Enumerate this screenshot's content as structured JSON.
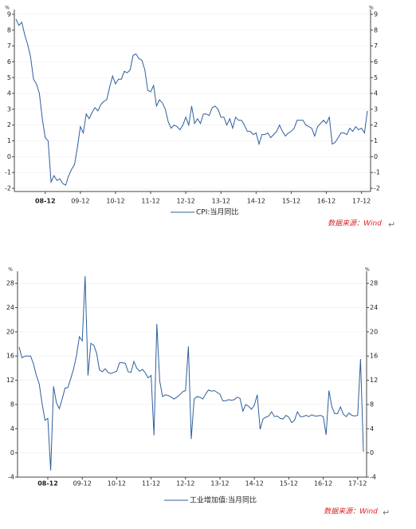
{
  "chart_data": [
    {
      "type": "line",
      "y_unit": "%",
      "legend": "CPI:当月同比",
      "source": "数据来源：Wind",
      "grid": true,
      "color": "#2d5f9e",
      "categories": [
        null,
        null,
        null,
        null,
        null,
        null,
        null,
        null,
        null,
        null,
        "08-12",
        null,
        null,
        null,
        null,
        null,
        null,
        null,
        null,
        null,
        null,
        null,
        "09-12",
        null,
        null,
        null,
        null,
        null,
        null,
        null,
        null,
        null,
        null,
        null,
        "10-12",
        null,
        null,
        null,
        null,
        null,
        null,
        null,
        null,
        null,
        null,
        null,
        "11-12",
        null,
        null,
        null,
        null,
        null,
        null,
        null,
        null,
        null,
        null,
        null,
        "12-12",
        null,
        null,
        null,
        null,
        null,
        null,
        null,
        null,
        null,
        null,
        null,
        "13-12",
        null,
        null,
        null,
        null,
        null,
        null,
        null,
        null,
        null,
        null,
        null,
        "14-12",
        null,
        null,
        null,
        null,
        null,
        null,
        null,
        null,
        null,
        null,
        null,
        "15-12",
        null,
        null,
        null,
        null,
        null,
        null,
        null,
        null,
        null,
        null,
        null,
        "16-12",
        null,
        null,
        null,
        null,
        null,
        null,
        null,
        null,
        null,
        null,
        null,
        "17-12",
        null,
        null
      ],
      "values": [
        8.7,
        8.3,
        8.5,
        7.7,
        7.1,
        6.3,
        4.9,
        4.6,
        4.0,
        2.4,
        1.2,
        1.0,
        -1.6,
        -1.2,
        -1.5,
        -1.4,
        -1.7,
        -1.8,
        -1.2,
        -0.8,
        -0.5,
        0.6,
        1.9,
        1.5,
        2.7,
        2.4,
        2.8,
        3.1,
        2.9,
        3.3,
        3.5,
        3.6,
        4.4,
        5.1,
        4.6,
        4.9,
        4.9,
        5.4,
        5.3,
        5.5,
        6.4,
        6.5,
        6.2,
        6.1,
        5.5,
        4.2,
        4.1,
        4.5,
        3.2,
        3.6,
        3.4,
        3.0,
        2.2,
        1.8,
        2.0,
        1.9,
        1.7,
        2.0,
        2.5,
        2.0,
        3.2,
        2.1,
        2.4,
        2.1,
        2.7,
        2.7,
        2.6,
        3.1,
        3.2,
        3.0,
        2.5,
        2.5,
        2.0,
        2.4,
        1.8,
        2.5,
        2.3,
        2.3,
        2.0,
        1.6,
        1.6,
        1.4,
        1.5,
        0.8,
        1.4,
        1.4,
        1.5,
        1.2,
        1.4,
        1.6,
        2.0,
        1.6,
        1.3,
        1.5,
        1.6,
        1.8,
        2.3,
        2.3,
        2.3,
        2.0,
        1.9,
        1.8,
        1.3,
        1.9,
        2.1,
        2.3,
        2.1,
        2.5,
        0.8,
        0.9,
        1.2,
        1.5,
        1.5,
        1.4,
        1.8,
        1.6,
        1.9,
        1.7,
        1.8,
        1.5,
        2.9
      ],
      "ylim": [
        -2.2,
        9.3
      ],
      "yticks": [
        -2,
        -1,
        0,
        1,
        2,
        3,
        4,
        5,
        6,
        7,
        8,
        9
      ]
    },
    {
      "type": "line",
      "y_unit": "%",
      "legend": "工业增加值:当月同比",
      "source": "数据来源：Wind",
      "grid": true,
      "color": "#2d5f9e",
      "categories": [
        null,
        null,
        null,
        null,
        null,
        null,
        null,
        null,
        null,
        null,
        "08-12",
        null,
        null,
        null,
        null,
        null,
        null,
        null,
        null,
        null,
        null,
        null,
        "09-12",
        null,
        null,
        null,
        null,
        null,
        null,
        null,
        null,
        null,
        null,
        null,
        "10-12",
        null,
        null,
        null,
        null,
        null,
        null,
        null,
        null,
        null,
        null,
        null,
        "11-12",
        null,
        null,
        null,
        null,
        null,
        null,
        null,
        null,
        null,
        null,
        null,
        "12-12",
        null,
        null,
        null,
        null,
        null,
        null,
        null,
        null,
        null,
        null,
        null,
        "13-12",
        null,
        null,
        null,
        null,
        null,
        null,
        null,
        null,
        null,
        null,
        null,
        "14-12",
        null,
        null,
        null,
        null,
        null,
        null,
        null,
        null,
        null,
        null,
        null,
        "15-12",
        null,
        null,
        null,
        null,
        null,
        null,
        null,
        null,
        null,
        null,
        null,
        "16-12",
        null,
        null,
        null,
        null,
        null,
        null,
        null,
        null,
        null,
        null,
        null,
        "17-12",
        null,
        null
      ],
      "values": [
        17.5,
        15.7,
        16,
        16,
        16,
        14.7,
        12.8,
        11.4,
        8.2,
        5.4,
        5.7,
        -2.9,
        11,
        8.3,
        7.3,
        8.9,
        10.7,
        10.8,
        12.3,
        13.9,
        16.1,
        19.2,
        18.5,
        29.2,
        12.8,
        18.1,
        17.8,
        16.5,
        13.7,
        13.4,
        13.9,
        13.3,
        13.1,
        13.3,
        13.5,
        14.9,
        14.9,
        14.8,
        13.4,
        13.3,
        15.1,
        14.0,
        13.5,
        13.8,
        13.2,
        12.4,
        12.8,
        2.9,
        21.3,
        11.9,
        9.3,
        9.6,
        9.5,
        9.2,
        8.9,
        9.2,
        9.6,
        10.1,
        10.3,
        17.6,
        2.3,
        8.9,
        9.3,
        9.2,
        8.9,
        9.7,
        10.4,
        10.2,
        10.3,
        10.0,
        9.7,
        8.6,
        8.6,
        8.8,
        8.7,
        8.8,
        9.2,
        9.0,
        6.9,
        8.0,
        7.7,
        7.2,
        7.9,
        9.6,
        3.9,
        5.6,
        5.9,
        6.1,
        6.8,
        6.0,
        6.1,
        5.7,
        5.6,
        6.2,
        5.9,
        5.0,
        5.4,
        6.8,
        6.0,
        6.0,
        6.2,
        6.0,
        6.3,
        6.1,
        6.1,
        6.2,
        6.0,
        3.0,
        10.3,
        7.6,
        6.5,
        6.5,
        7.6,
        6.4,
        6.0,
        6.6,
        6.2,
        6.1,
        6.2,
        15.5,
        0.2
      ],
      "ylim": [
        -4,
        30
      ],
      "yticks": [
        -4,
        0,
        4,
        8,
        12,
        16,
        20,
        24,
        28
      ]
    }
  ]
}
